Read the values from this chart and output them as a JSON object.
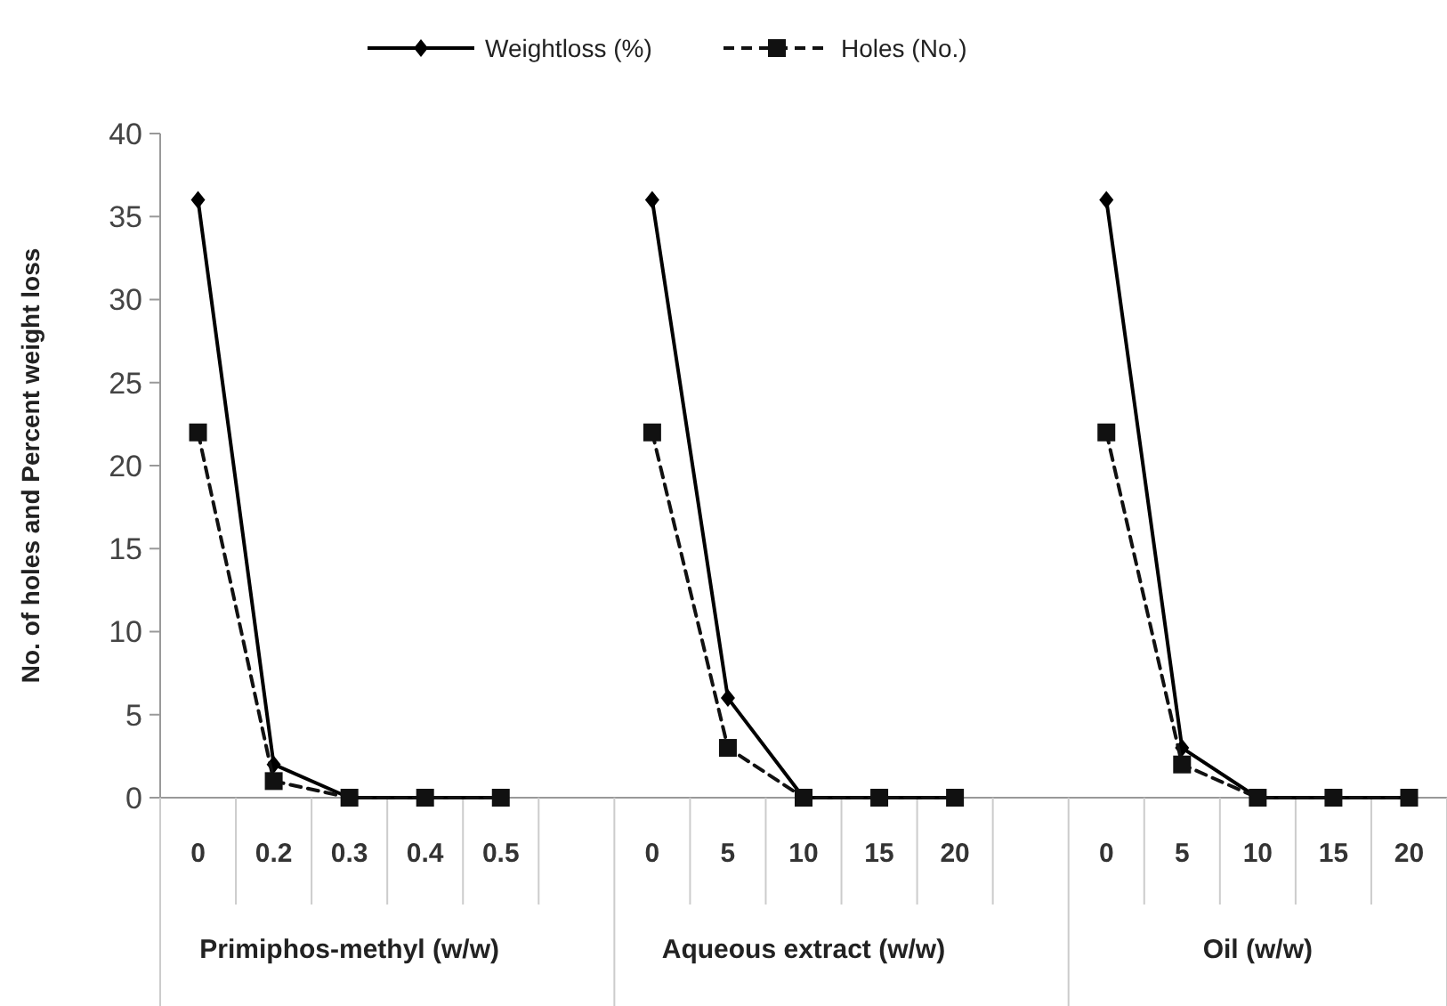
{
  "chart_data": {
    "type": "line",
    "ylabel": "No. of holes and Percent weight loss",
    "categories": [
      "0",
      "0.2",
      "0.3",
      "0.4",
      "0.5",
      null,
      "0",
      "5",
      "10",
      "15",
      "20",
      null,
      "0",
      "5",
      "10",
      "15",
      "20"
    ],
    "series": [
      {
        "name": "Weightloss (%)",
        "color": "#000000",
        "marker": "diamond",
        "line_style": "solid",
        "values": [
          36,
          2,
          0,
          0,
          0,
          null,
          36,
          6,
          0,
          0,
          0,
          null,
          36,
          3,
          0,
          0,
          0
        ]
      },
      {
        "name": "Holes (No.)",
        "color": "#111111",
        "marker": "square",
        "line_style": "dashed",
        "values": [
          22,
          1,
          0,
          0,
          0,
          null,
          22,
          3,
          0,
          0,
          0,
          null,
          22,
          2,
          0,
          0,
          0
        ]
      }
    ],
    "ylim": [
      0,
      40
    ],
    "yticks": [
      0,
      5,
      10,
      15,
      20,
      25,
      30,
      35,
      40
    ],
    "grid": false,
    "legend": "top",
    "annotations": [
      "Primiphos-methyl (w/w)",
      "Aqueous extract (w/w)",
      "Oil (w/w)"
    ]
  }
}
